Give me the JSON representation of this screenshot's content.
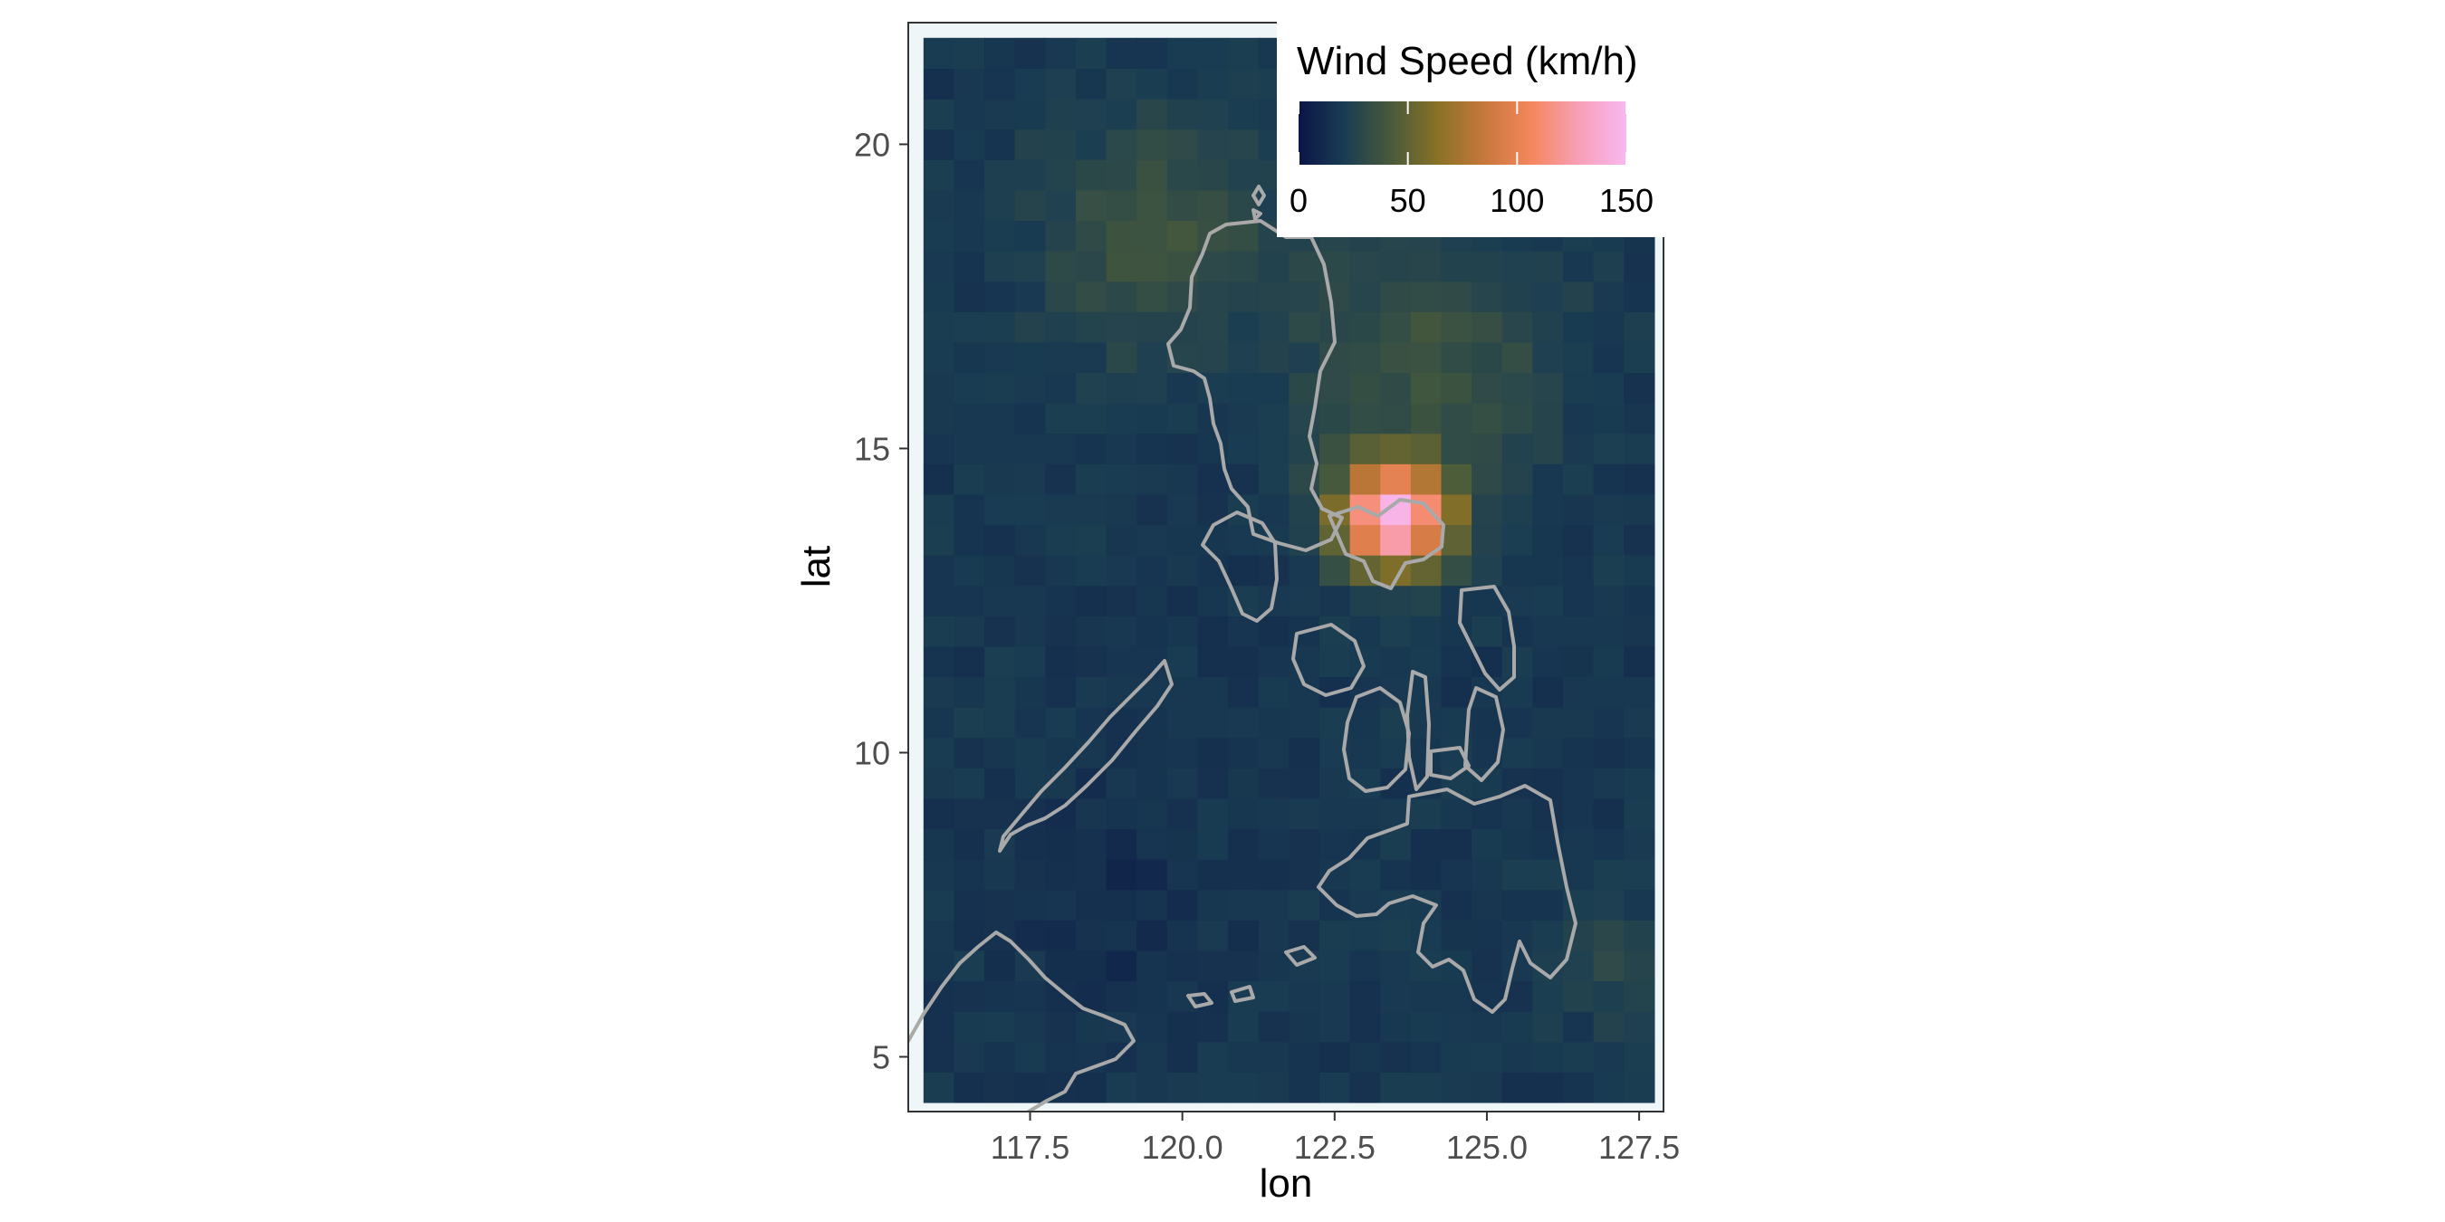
{
  "map": {
    "x_axis": {
      "title": "lon",
      "ticks": [
        "117.5",
        "120.0",
        "122.5",
        "125.0",
        "127.5"
      ],
      "tick_values": [
        117.5,
        120.0,
        122.5,
        125.0,
        127.5
      ],
      "range": [
        115.5,
        127.9
      ]
    },
    "y_axis": {
      "title": "lat",
      "ticks": [
        "5",
        "10",
        "15",
        "20"
      ],
      "tick_values": [
        5,
        10,
        15,
        20
      ],
      "range": [
        4.1,
        22.0
      ]
    },
    "grid_extent": {
      "lon": [
        115.75,
        127.75
      ],
      "lat": [
        4.25,
        21.75
      ],
      "cell_deg": 0.5
    },
    "background_fill": "#eef6f8",
    "coastline_color": "#a9a9a9",
    "peak_wind_location": {
      "lon": 123.5,
      "lat": 13.9
    }
  },
  "legend": {
    "title": "Wind Speed (km/h)",
    "ticks": [
      "0",
      "50",
      "100",
      "150"
    ],
    "tick_values": [
      0,
      50,
      100,
      150
    ],
    "range": [
      0,
      150
    ],
    "colors": [
      "#0b1547",
      "#1a3d52",
      "#4a5b3a",
      "#8a7226",
      "#c9783d",
      "#f5875f",
      "#f7a0b8",
      "#f9b8f0"
    ],
    "placement": "top-right"
  },
  "chart_data": {
    "type": "heatmap",
    "title": "",
    "xlabel": "lon",
    "ylabel": "lat",
    "xlim": [
      115.5,
      127.9
    ],
    "ylim": [
      4.1,
      22.0
    ],
    "value_label": "Wind Speed (km/h)",
    "value_range": [
      0,
      150
    ],
    "grid": "0.5 degree cells",
    "peak": {
      "lon": 123.5,
      "lat": 13.9,
      "value": 148
    },
    "typical_background_value": 20
  }
}
